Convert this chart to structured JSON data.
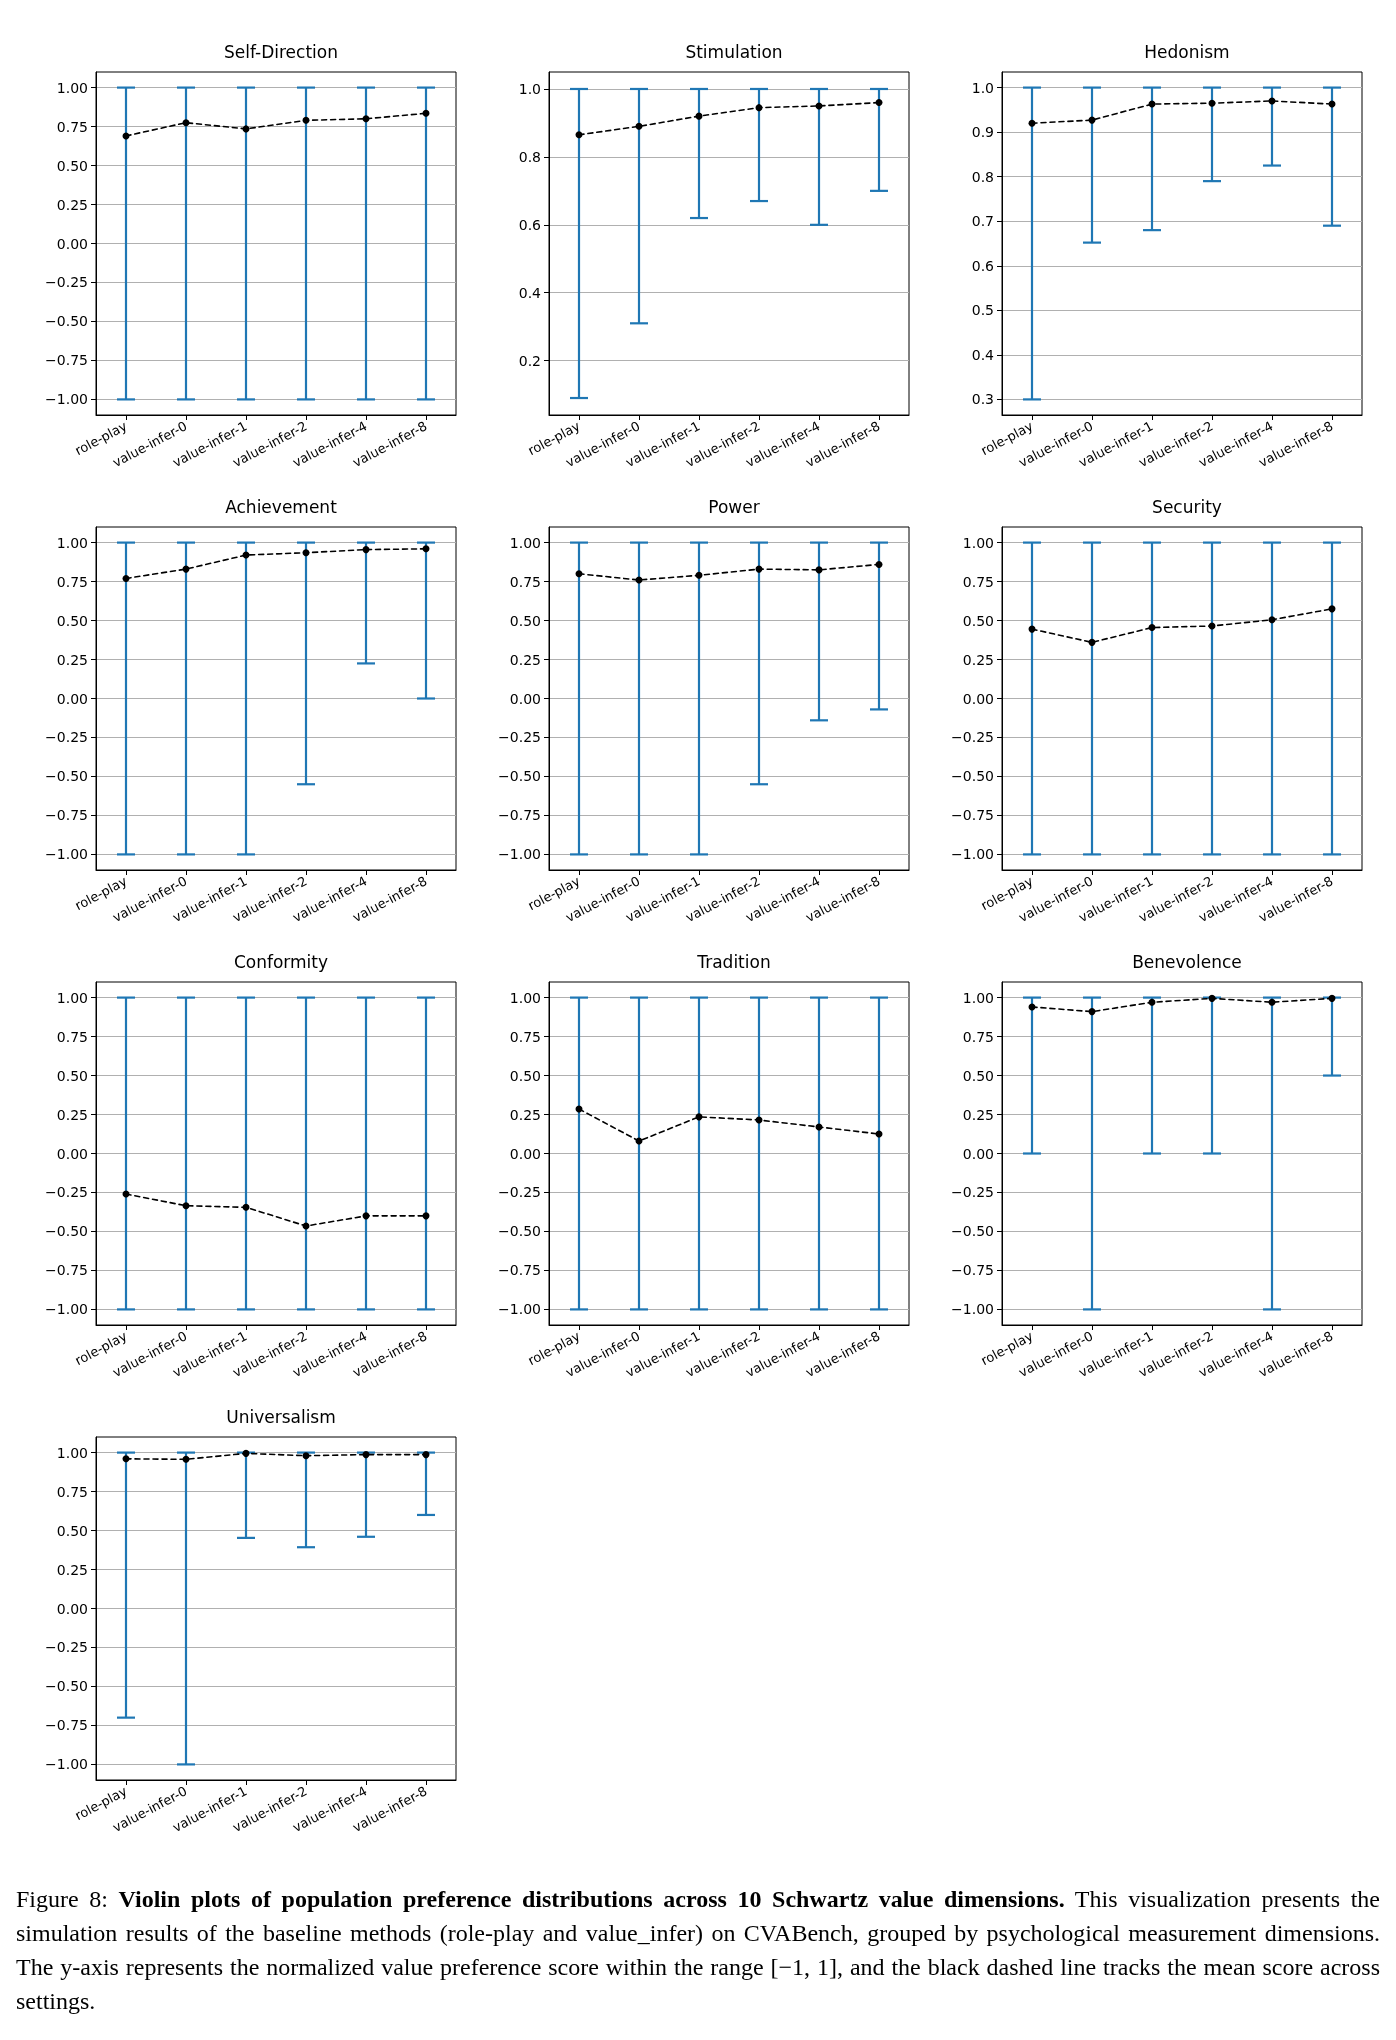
{
  "chart_data": [
    {
      "type": "line",
      "title": "Self-Direction",
      "categories": [
        "role-play",
        "value-infer-0",
        "value-infer-1",
        "value-infer-2",
        "value-infer-4",
        "value-infer-8"
      ],
      "marker": "circle",
      "line_style": "dashed",
      "grid": "y",
      "ylim": [
        -1.1,
        1.1
      ],
      "yticks": [
        {
          "value": -1,
          "label": "−1.00"
        },
        {
          "value": -0.75,
          "label": "−0.75"
        },
        {
          "value": -0.5,
          "label": "−0.50"
        },
        {
          "value": -0.25,
          "label": "−0.25"
        },
        {
          "value": 0,
          "label": "0.00"
        },
        {
          "value": 0.25,
          "label": "0.25"
        },
        {
          "value": 0.5,
          "label": "0.50"
        },
        {
          "value": 0.75,
          "label": "0.75"
        },
        {
          "value": 1,
          "label": "1.00"
        }
      ],
      "series": [
        {
          "color": "#000000",
          "values": [
            0.69,
            0.775,
            0.735,
            0.79,
            0.8,
            0.835
          ],
          "errors": [
            [
              -1,
              1
            ],
            [
              -1,
              1
            ],
            [
              -1,
              1
            ],
            [
              -1,
              1
            ],
            [
              -1,
              1
            ],
            [
              -1,
              1
            ]
          ]
        }
      ]
    },
    {
      "type": "line",
      "title": "Stimulation",
      "categories": [
        "role-play",
        "value-infer-0",
        "value-infer-1",
        "value-infer-2",
        "value-infer-4",
        "value-infer-8"
      ],
      "marker": "circle",
      "line_style": "dashed",
      "grid": "y",
      "ylim": [
        0.04,
        1.05
      ],
      "yticks": [
        {
          "value": 0.2,
          "label": "0.2"
        },
        {
          "value": 0.4,
          "label": "0.4"
        },
        {
          "value": 0.6,
          "label": "0.6"
        },
        {
          "value": 0.8,
          "label": "0.8"
        },
        {
          "value": 1,
          "label": "1.0"
        }
      ],
      "series": [
        {
          "color": "#000000",
          "values": [
            0.865,
            0.89,
            0.92,
            0.945,
            0.95,
            0.96
          ],
          "errors": [
            [
              0.09,
              1
            ],
            [
              0.31,
              1
            ],
            [
              0.62,
              1
            ],
            [
              0.67,
              1
            ],
            [
              0.6,
              1
            ],
            [
              0.7,
              1
            ]
          ]
        }
      ]
    },
    {
      "type": "line",
      "title": "Hedonism",
      "categories": [
        "role-play",
        "value-infer-0",
        "value-infer-1",
        "value-infer-2",
        "value-infer-4",
        "value-infer-8"
      ],
      "marker": "circle",
      "line_style": "dashed",
      "grid": "y",
      "ylim": [
        0.265,
        1.035
      ],
      "yticks": [
        {
          "value": 0.3,
          "label": "0.3"
        },
        {
          "value": 0.4,
          "label": "0.4"
        },
        {
          "value": 0.5,
          "label": "0.5"
        },
        {
          "value": 0.6,
          "label": "0.6"
        },
        {
          "value": 0.7,
          "label": "0.7"
        },
        {
          "value": 0.8,
          "label": "0.8"
        },
        {
          "value": 0.9,
          "label": "0.9"
        },
        {
          "value": 1,
          "label": "1.0"
        }
      ],
      "series": [
        {
          "color": "#000000",
          "values": [
            0.92,
            0.927,
            0.963,
            0.965,
            0.97,
            0.963
          ],
          "errors": [
            [
              0.3,
              1
            ],
            [
              0.652,
              1
            ],
            [
              0.68,
              1
            ],
            [
              0.79,
              1
            ],
            [
              0.825,
              1
            ],
            [
              0.69,
              1
            ]
          ]
        }
      ]
    },
    {
      "type": "line",
      "title": "Achievement",
      "categories": [
        "role-play",
        "value-infer-0",
        "value-infer-1",
        "value-infer-2",
        "value-infer-4",
        "value-infer-8"
      ],
      "marker": "circle",
      "line_style": "dashed",
      "grid": "y",
      "ylim": [
        -1.1,
        1.1
      ],
      "yticks": [
        {
          "value": -1,
          "label": "−1.00"
        },
        {
          "value": -0.75,
          "label": "−0.75"
        },
        {
          "value": -0.5,
          "label": "−0.50"
        },
        {
          "value": -0.25,
          "label": "−0.25"
        },
        {
          "value": 0,
          "label": "0.00"
        },
        {
          "value": 0.25,
          "label": "0.25"
        },
        {
          "value": 0.5,
          "label": "0.50"
        },
        {
          "value": 0.75,
          "label": "0.75"
        },
        {
          "value": 1,
          "label": "1.00"
        }
      ],
      "series": [
        {
          "color": "#000000",
          "values": [
            0.77,
            0.83,
            0.92,
            0.935,
            0.955,
            0.96
          ],
          "errors": [
            [
              -1,
              1
            ],
            [
              -1,
              1
            ],
            [
              -1,
              1
            ],
            [
              -0.55,
              1
            ],
            [
              0.225,
              1
            ],
            [
              0,
              1
            ]
          ]
        }
      ]
    },
    {
      "type": "line",
      "title": "Power",
      "categories": [
        "role-play",
        "value-infer-0",
        "value-infer-1",
        "value-infer-2",
        "value-infer-4",
        "value-infer-8"
      ],
      "marker": "circle",
      "line_style": "dashed",
      "grid": "y",
      "ylim": [
        -1.1,
        1.1
      ],
      "yticks": [
        {
          "value": -1,
          "label": "−1.00"
        },
        {
          "value": -0.75,
          "label": "−0.75"
        },
        {
          "value": -0.5,
          "label": "−0.50"
        },
        {
          "value": -0.25,
          "label": "−0.25"
        },
        {
          "value": 0,
          "label": "0.00"
        },
        {
          "value": 0.25,
          "label": "0.25"
        },
        {
          "value": 0.5,
          "label": "0.50"
        },
        {
          "value": 0.75,
          "label": "0.75"
        },
        {
          "value": 1,
          "label": "1.00"
        }
      ],
      "series": [
        {
          "color": "#000000",
          "values": [
            0.8,
            0.76,
            0.79,
            0.83,
            0.825,
            0.86
          ],
          "errors": [
            [
              -1,
              1
            ],
            [
              -1,
              1
            ],
            [
              -1,
              1
            ],
            [
              -0.55,
              1
            ],
            [
              -0.14,
              1
            ],
            [
              -0.07,
              1
            ]
          ]
        }
      ]
    },
    {
      "type": "line",
      "title": "Security",
      "categories": [
        "role-play",
        "value-infer-0",
        "value-infer-1",
        "value-infer-2",
        "value-infer-4",
        "value-infer-8"
      ],
      "marker": "circle",
      "line_style": "dashed",
      "grid": "y",
      "ylim": [
        -1.1,
        1.1
      ],
      "yticks": [
        {
          "value": -1,
          "label": "−1.00"
        },
        {
          "value": -0.75,
          "label": "−0.75"
        },
        {
          "value": -0.5,
          "label": "−0.50"
        },
        {
          "value": -0.25,
          "label": "−0.25"
        },
        {
          "value": 0,
          "label": "0.00"
        },
        {
          "value": 0.25,
          "label": "0.25"
        },
        {
          "value": 0.5,
          "label": "0.50"
        },
        {
          "value": 0.75,
          "label": "0.75"
        },
        {
          "value": 1,
          "label": "1.00"
        }
      ],
      "series": [
        {
          "color": "#000000",
          "values": [
            0.445,
            0.36,
            0.455,
            0.465,
            0.505,
            0.575
          ],
          "errors": [
            [
              -1,
              1
            ],
            [
              -1,
              1
            ],
            [
              -1,
              1
            ],
            [
              -1,
              1
            ],
            [
              -1,
              1
            ],
            [
              -1,
              1
            ]
          ]
        }
      ]
    },
    {
      "type": "line",
      "title": "Conformity",
      "categories": [
        "role-play",
        "value-infer-0",
        "value-infer-1",
        "value-infer-2",
        "value-infer-4",
        "value-infer-8"
      ],
      "marker": "circle",
      "line_style": "dashed",
      "grid": "y",
      "ylim": [
        -1.1,
        1.1
      ],
      "yticks": [
        {
          "value": -1,
          "label": "−1.00"
        },
        {
          "value": -0.75,
          "label": "−0.75"
        },
        {
          "value": -0.5,
          "label": "−0.50"
        },
        {
          "value": -0.25,
          "label": "−0.25"
        },
        {
          "value": 0,
          "label": "0.00"
        },
        {
          "value": 0.25,
          "label": "0.25"
        },
        {
          "value": 0.5,
          "label": "0.50"
        },
        {
          "value": 0.75,
          "label": "0.75"
        },
        {
          "value": 1,
          "label": "1.00"
        }
      ],
      "series": [
        {
          "color": "#000000",
          "values": [
            -0.26,
            -0.335,
            -0.345,
            -0.465,
            -0.4,
            -0.4
          ],
          "errors": [
            [
              -1,
              1
            ],
            [
              -1,
              1
            ],
            [
              -1,
              1
            ],
            [
              -1,
              1
            ],
            [
              -1,
              1
            ],
            [
              -1,
              1
            ]
          ]
        }
      ]
    },
    {
      "type": "line",
      "title": "Tradition",
      "categories": [
        "role-play",
        "value-infer-0",
        "value-infer-1",
        "value-infer-2",
        "value-infer-4",
        "value-infer-8"
      ],
      "marker": "circle",
      "line_style": "dashed",
      "grid": "y",
      "ylim": [
        -1.1,
        1.1
      ],
      "yticks": [
        {
          "value": -1,
          "label": "−1.00"
        },
        {
          "value": -0.75,
          "label": "−0.75"
        },
        {
          "value": -0.5,
          "label": "−0.50"
        },
        {
          "value": -0.25,
          "label": "−0.25"
        },
        {
          "value": 0,
          "label": "0.00"
        },
        {
          "value": 0.25,
          "label": "0.25"
        },
        {
          "value": 0.5,
          "label": "0.50"
        },
        {
          "value": 0.75,
          "label": "0.75"
        },
        {
          "value": 1,
          "label": "1.00"
        }
      ],
      "series": [
        {
          "color": "#000000",
          "values": [
            0.285,
            0.08,
            0.235,
            0.215,
            0.17,
            0.125
          ],
          "errors": [
            [
              -1,
              1
            ],
            [
              -1,
              1
            ],
            [
              -1,
              1
            ],
            [
              -1,
              1
            ],
            [
              -1,
              1
            ],
            [
              -1,
              1
            ]
          ]
        }
      ]
    },
    {
      "type": "line",
      "title": "Benevolence",
      "categories": [
        "role-play",
        "value-infer-0",
        "value-infer-1",
        "value-infer-2",
        "value-infer-4",
        "value-infer-8"
      ],
      "marker": "circle",
      "line_style": "dashed",
      "grid": "y",
      "ylim": [
        -1.1,
        1.1
      ],
      "yticks": [
        {
          "value": -1,
          "label": "−1.00"
        },
        {
          "value": -0.75,
          "label": "−0.75"
        },
        {
          "value": -0.5,
          "label": "−0.50"
        },
        {
          "value": -0.25,
          "label": "−0.25"
        },
        {
          "value": 0,
          "label": "0.00"
        },
        {
          "value": 0.25,
          "label": "0.25"
        },
        {
          "value": 0.5,
          "label": "0.50"
        },
        {
          "value": 0.75,
          "label": "0.75"
        },
        {
          "value": 1,
          "label": "1.00"
        }
      ],
      "series": [
        {
          "color": "#000000",
          "values": [
            0.94,
            0.91,
            0.97,
            0.995,
            0.97,
            0.995
          ],
          "errors": [
            [
              0,
              1
            ],
            [
              -1,
              1
            ],
            [
              0,
              1
            ],
            [
              0,
              1
            ],
            [
              -1,
              1
            ],
            [
              0.5,
              1
            ]
          ]
        }
      ]
    },
    {
      "type": "line",
      "title": "Universalism",
      "categories": [
        "role-play",
        "value-infer-0",
        "value-infer-1",
        "value-infer-2",
        "value-infer-4",
        "value-infer-8"
      ],
      "marker": "circle",
      "line_style": "dashed",
      "grid": "y",
      "ylim": [
        -1.1,
        1.1
      ],
      "yticks": [
        {
          "value": -1,
          "label": "−1.00"
        },
        {
          "value": -0.75,
          "label": "−0.75"
        },
        {
          "value": -0.5,
          "label": "−0.50"
        },
        {
          "value": -0.25,
          "label": "−0.25"
        },
        {
          "value": 0,
          "label": "0.00"
        },
        {
          "value": 0.25,
          "label": "0.25"
        },
        {
          "value": 0.5,
          "label": "0.50"
        },
        {
          "value": 0.75,
          "label": "0.75"
        },
        {
          "value": 1,
          "label": "1.00"
        }
      ],
      "series": [
        {
          "color": "#000000",
          "values": [
            0.96,
            0.957,
            0.995,
            0.98,
            0.987,
            0.987
          ],
          "errors": [
            [
              -0.7,
              1
            ],
            [
              -1,
              1
            ],
            [
              0.453,
              1
            ],
            [
              0.393,
              1
            ],
            [
              0.46,
              1
            ],
            [
              0.6,
              1
            ]
          ]
        }
      ],
      "annotations": [
        "Figure 8:",
        "Violin plots of population preference distributions across 10 Schwartz value dimensions.",
        "This visualization presents the simulation results of the baseline methods (role-play and value_infer) on CVABench, grouped by psychological measurement dimensions. The y-axis represents the normalized value preference score within the range [−1, 1], and the black dashed line tracks the mean score across settings."
      ]
    }
  ]
}
